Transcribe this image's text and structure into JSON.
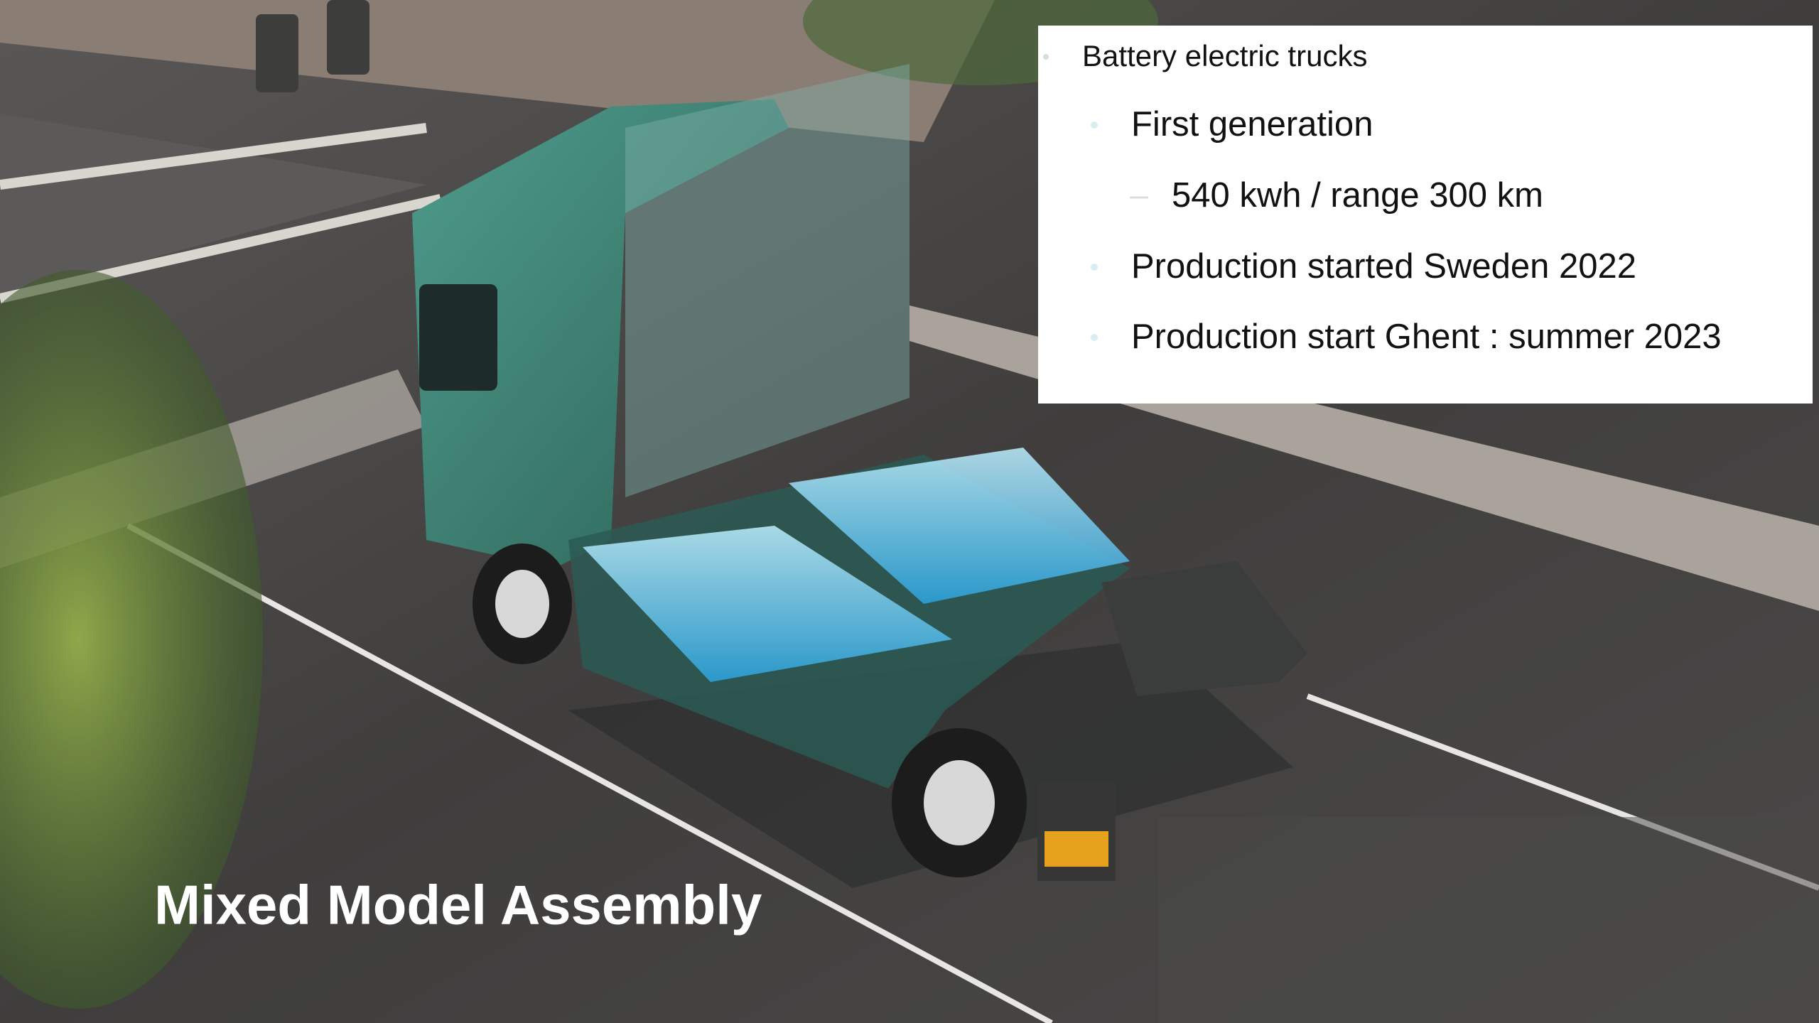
{
  "slide": {
    "title": "Mixed Model Assembly",
    "info_box": {
      "heading": "Battery electric trucks",
      "items": [
        {
          "text": "First generation",
          "subitems": [
            "540 kwh / range 300 km"
          ]
        },
        {
          "text": "Production started Sweden 2022"
        },
        {
          "text": "Production start Ghent : summer 2023"
        }
      ]
    }
  }
}
